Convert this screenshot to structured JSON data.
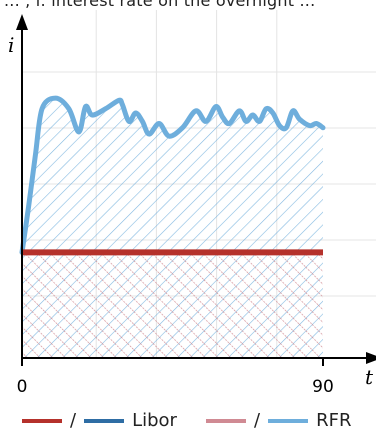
{
  "top_caption": "... , i: interest rate on the overnight ...",
  "chart_data": {
    "type": "line",
    "xlabel": "t",
    "ylabel": "i",
    "x_ticks": [
      "0",
      "90"
    ],
    "xlim": [
      0,
      90
    ],
    "ylim": [
      0,
      8
    ],
    "grid": true,
    "legend_position": "bottom",
    "series": [
      {
        "name": "Libor",
        "style": "constant",
        "color": "#B5312B",
        "alt_color": "#2E6DA4",
        "x": [
          0,
          90
        ],
        "y": [
          2.5,
          2.5
        ]
      },
      {
        "name": "RFR",
        "style": "fluctuating",
        "color": "#6EAEDC",
        "alt_color": "#D08A93",
        "x": [
          0,
          2,
          4,
          6,
          10,
          14,
          17,
          19,
          21,
          25,
          29,
          30,
          32,
          34,
          36,
          38,
          41,
          44,
          48,
          52,
          55,
          58,
          60,
          62,
          65,
          67,
          69,
          71,
          73,
          75,
          77,
          79,
          81,
          83,
          86,
          88,
          90
        ],
        "y": [
          2.5,
          3.6,
          4.8,
          5.9,
          6.15,
          5.9,
          5.35,
          5.95,
          5.75,
          5.9,
          6.1,
          6.0,
          5.6,
          5.8,
          5.6,
          5.3,
          5.55,
          5.25,
          5.45,
          5.85,
          5.6,
          5.95,
          5.7,
          5.55,
          5.85,
          5.6,
          5.75,
          5.6,
          5.9,
          5.8,
          5.5,
          5.45,
          5.85,
          5.65,
          5.5,
          5.55,
          5.45
        ]
      }
    ]
  },
  "legend": {
    "items": [
      {
        "left_color": "#B5312B",
        "right_color": "#2E6DA4",
        "separator": "/",
        "label": "Libor"
      },
      {
        "left_color": "#D08A93",
        "right_color": "#6EAEDC",
        "separator": "/",
        "label": "RFR"
      }
    ]
  }
}
